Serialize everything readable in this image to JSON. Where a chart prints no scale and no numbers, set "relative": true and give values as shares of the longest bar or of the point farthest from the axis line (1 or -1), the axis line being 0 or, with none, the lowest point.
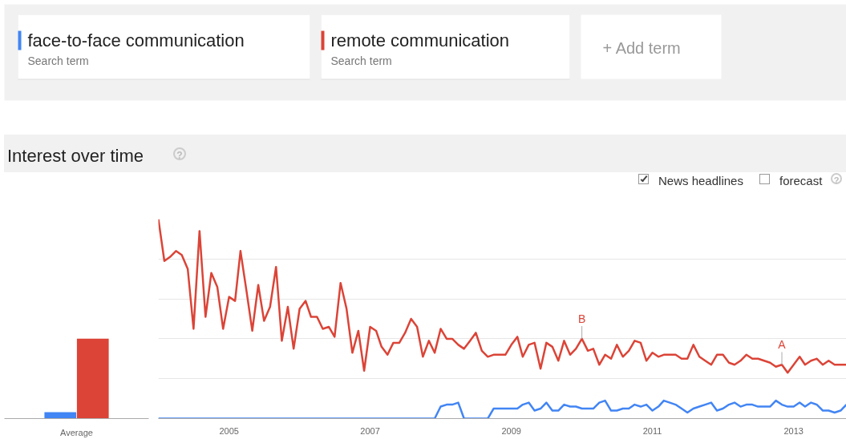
{
  "chart_data": [
    {
      "type": "bar",
      "relative": true,
      "categories": [
        "Average"
      ],
      "tick_labels": "x",
      "grid": false,
      "series": [
        {
          "color": "#4285f4",
          "values": [
            0.08
          ]
        },
        {
          "color": "#db4437",
          "values": [
            1
          ]
        }
      ]
    },
    {
      "type": "line",
      "relative": true,
      "title": "Interest over time",
      "legend": "top",
      "tick_labels": "x",
      "grid": "y",
      "marker": "none",
      "line_style": "solid",
      "x": [
        "2004-01",
        "2004-02",
        "2004-03",
        "2004-04",
        "2004-05",
        "2004-06",
        "2004-07",
        "2004-08",
        "2004-09",
        "2004-10",
        "2004-11",
        "2004-12",
        "2005-01",
        "2005-02",
        "2005-03",
        "2005-04",
        "2005-05",
        "2005-06",
        "2005-07",
        "2005-08",
        "2005-09",
        "2005-10",
        "2005-11",
        "2005-12",
        "2006-01",
        "2006-02",
        "2006-03",
        "2006-04",
        "2006-05",
        "2006-06",
        "2006-07",
        "2006-08",
        "2006-09",
        "2006-10",
        "2006-11",
        "2006-12",
        "2007-01",
        "2007-02",
        "2007-03",
        "2007-04",
        "2007-05",
        "2007-06",
        "2007-07",
        "2007-08",
        "2007-09",
        "2007-10",
        "2007-11",
        "2007-12",
        "2008-01",
        "2008-02",
        "2008-03",
        "2008-04",
        "2008-05",
        "2008-06",
        "2008-07",
        "2008-08",
        "2008-09",
        "2008-10",
        "2008-11",
        "2008-12",
        "2009-01",
        "2009-02",
        "2009-03",
        "2009-04",
        "2009-05",
        "2009-06",
        "2009-07",
        "2009-08",
        "2009-09",
        "2009-10",
        "2009-11",
        "2009-12",
        "2010-01",
        "2010-02",
        "2010-03",
        "2010-04",
        "2010-05",
        "2010-06",
        "2010-07",
        "2010-08",
        "2010-09",
        "2010-10",
        "2010-11",
        "2010-12",
        "2011-01",
        "2011-02",
        "2011-03",
        "2011-04",
        "2011-05",
        "2011-06",
        "2011-07",
        "2011-08",
        "2011-09",
        "2011-10",
        "2011-11",
        "2011-12",
        "2012-01",
        "2012-02",
        "2012-03",
        "2012-04",
        "2012-05",
        "2012-06",
        "2012-07",
        "2012-08",
        "2012-09",
        "2012-10",
        "2012-11",
        "2012-12",
        "2013-01",
        "2013-02",
        "2013-03",
        "2013-04",
        "2013-05",
        "2013-06",
        "2013-07",
        "2013-08",
        "2013-09",
        "2013-10"
      ],
      "xlim": [
        "2004-01",
        "2013-10"
      ],
      "xticks": [
        {
          "value": "2005-01",
          "label": "2005"
        },
        {
          "value": "2007-01",
          "label": "2007"
        },
        {
          "value": "2009-01",
          "label": "2009"
        },
        {
          "value": "2011-01",
          "label": "2011"
        },
        {
          "value": "2013-01",
          "label": "2013"
        }
      ],
      "series": [
        {
          "name": "face-to-face communication",
          "color": "#4285f4",
          "values": [
            0,
            0,
            0,
            0,
            0,
            0,
            0,
            0,
            0,
            0,
            0,
            0,
            0,
            0,
            0,
            0,
            0,
            0,
            0,
            0,
            0,
            0,
            0,
            0,
            0,
            0,
            0,
            0,
            0,
            0,
            0,
            0,
            0,
            0,
            0,
            0,
            0,
            0,
            0,
            0,
            0,
            0,
            0,
            0,
            0,
            0,
            0,
            0,
            0.06,
            0.07,
            0.07,
            0.08,
            0,
            0,
            0,
            0,
            0,
            0.05,
            0.05,
            0.05,
            0.05,
            0.05,
            0.07,
            0.08,
            0.04,
            0.05,
            0.08,
            0.04,
            0.04,
            0.07,
            0.06,
            0.06,
            0.05,
            0.05,
            0.05,
            0.08,
            0.09,
            0.04,
            0.04,
            0.05,
            0.05,
            0.07,
            0.06,
            0.07,
            0.04,
            0.06,
            0.09,
            0.08,
            0.07,
            0.05,
            0.03,
            0.05,
            0.06,
            0.07,
            0.08,
            0.04,
            0.05,
            0.07,
            0.08,
            0.06,
            0.07,
            0.07,
            0.06,
            0.06,
            0.06,
            0.09,
            0.07,
            0.06,
            0.06,
            0.08,
            0.06,
            0.08,
            0.07,
            0.04,
            0.04,
            0.03,
            0.04,
            0.07
          ]
        },
        {
          "name": "remote communication",
          "color": "#db4437",
          "values": [
            1.0,
            0.79,
            0.81,
            0.84,
            0.82,
            0.75,
            0.45,
            0.94,
            0.51,
            0.73,
            0.66,
            0.45,
            0.61,
            0.59,
            0.84,
            0.64,
            0.44,
            0.67,
            0.49,
            0.56,
            0.76,
            0.39,
            0.56,
            0.35,
            0.55,
            0.59,
            0.51,
            0.51,
            0.45,
            0.46,
            0.41,
            0.68,
            0.55,
            0.33,
            0.44,
            0.24,
            0.46,
            0.44,
            0.36,
            0.32,
            0.38,
            0.38,
            0.43,
            0.5,
            0.46,
            0.31,
            0.39,
            0.33,
            0.45,
            0.4,
            0.4,
            0.37,
            0.35,
            0.39,
            0.43,
            0.34,
            0.31,
            0.32,
            0.32,
            0.32,
            0.37,
            0.41,
            0.31,
            0.37,
            0.38,
            0.25,
            0.38,
            0.36,
            0.29,
            0.39,
            0.32,
            0.35,
            0.4,
            0.34,
            0.35,
            0.27,
            0.32,
            0.3,
            0.37,
            0.31,
            0.34,
            0.39,
            0.38,
            0.29,
            0.33,
            0.31,
            0.32,
            0.32,
            0.32,
            0.3,
            0.3,
            0.37,
            0.31,
            0.29,
            0.27,
            0.32,
            0.32,
            0.28,
            0.27,
            0.29,
            0.32,
            0.3,
            0.3,
            0.29,
            0.28,
            0.26,
            0.27,
            0.23,
            0.27,
            0.31,
            0.27,
            0.29,
            0.3,
            0.27,
            0.29,
            0.27,
            0.27,
            0.27
          ]
        }
      ],
      "annotations": [
        "Search term",
        "Search term",
        "+ Add term",
        "?",
        "News headlines",
        "forecast",
        "?",
        {
          "text": "B",
          "x": "2010-01",
          "y": 0.4
        },
        {
          "text": "A",
          "x": "2012-11",
          "y": 0.27
        }
      ]
    }
  ]
}
